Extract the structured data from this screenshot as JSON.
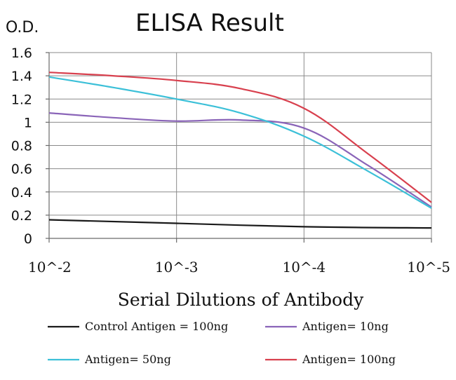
{
  "chart_data": {
    "type": "line",
    "title": "ELISA Result",
    "ylabel": "O.D.",
    "xlabel": "Serial Dilutions of Antibody",
    "categories": [
      "10^-2",
      "10^-3",
      "10^-4",
      "10^-5"
    ],
    "y_ticks": [
      "0",
      "0.2",
      "0.4",
      "0.6",
      "0.8",
      "1",
      "1.2",
      "1.4",
      "1.6"
    ],
    "ylim": [
      0,
      1.6
    ],
    "grid": true,
    "legend_position": "bottom",
    "series": [
      {
        "name": "Control Antigen = 100ng",
        "color": "#1a1a1a",
        "x": [
          0,
          1,
          2,
          3
        ],
        "y": [
          0.16,
          0.13,
          0.1,
          0.09
        ]
      },
      {
        "name": "Antigen= 10ng",
        "color": "#8a64b8",
        "x": [
          0,
          0.5,
          1,
          1.5,
          2,
          2.5,
          3
        ],
        "y": [
          1.08,
          1.04,
          1.01,
          1.02,
          0.95,
          0.63,
          0.27
        ]
      },
      {
        "name": "Antigen= 50ng",
        "color": "#3cc0d8",
        "x": [
          0,
          0.5,
          1,
          1.5,
          2,
          2.5,
          3
        ],
        "y": [
          1.39,
          1.3,
          1.2,
          1.08,
          0.88,
          0.58,
          0.26
        ]
      },
      {
        "name": "Antigen= 100ng",
        "color": "#d8404e",
        "x": [
          0,
          0.5,
          1,
          1.5,
          2,
          2.5,
          3
        ],
        "y": [
          1.43,
          1.4,
          1.36,
          1.29,
          1.12,
          0.73,
          0.31
        ]
      }
    ]
  }
}
